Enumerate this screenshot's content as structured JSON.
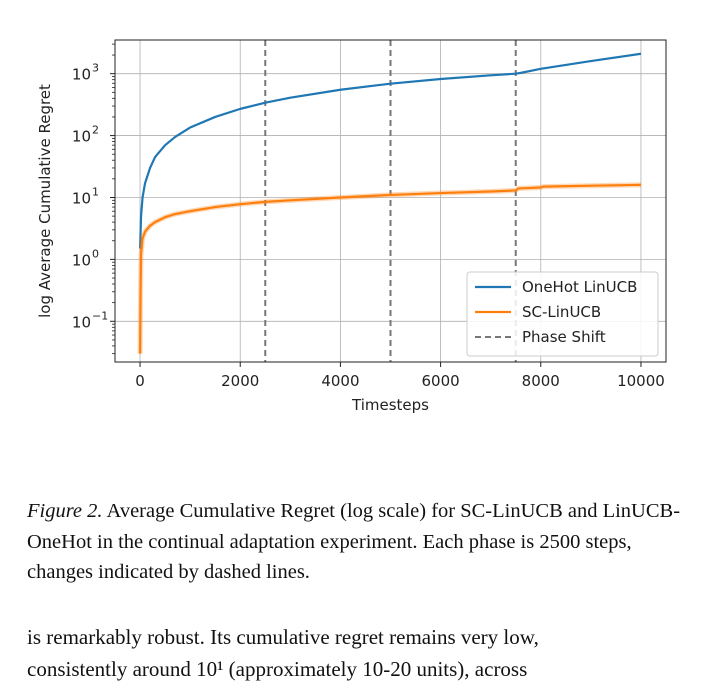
{
  "chart_data": {
    "type": "line",
    "xlabel": "Timesteps",
    "ylabel": "log Average Cumulative Regret",
    "y_scale": "log",
    "xlim": [
      -500,
      10500
    ],
    "ylim": [
      0.022,
      3500
    ],
    "x_ticks": [
      0,
      2000,
      4000,
      6000,
      8000,
      10000
    ],
    "x_tick_labels": [
      "0",
      "2000",
      "4000",
      "6000",
      "8000",
      "10000"
    ],
    "y_ticks": [
      0.1,
      1,
      10,
      100,
      1000
    ],
    "y_tick_labels": [
      {
        "base": "10",
        "exp": "−1"
      },
      {
        "base": "10",
        "exp": "0"
      },
      {
        "base": "10",
        "exp": "1"
      },
      {
        "base": "10",
        "exp": "2"
      },
      {
        "base": "10",
        "exp": "3"
      }
    ],
    "grid": true,
    "legend_position": "lower-right",
    "series": [
      {
        "name": "OneHot LinUCB",
        "color": "#1f77b4",
        "x": [
          1,
          20,
          50,
          100,
          200,
          300,
          500,
          700,
          1000,
          1500,
          2000,
          2500,
          3000,
          4000,
          5000,
          6000,
          7000,
          7500,
          7600,
          8000,
          9000,
          10000
        ],
        "y": [
          1.5,
          5,
          10,
          17,
          30,
          45,
          70,
          95,
          135,
          200,
          270,
          340,
          410,
          550,
          690,
          820,
          940,
          1000,
          1030,
          1200,
          1600,
          2100
        ]
      },
      {
        "name": "SC-LinUCB",
        "color": "#ff7f0e",
        "x": [
          1,
          10,
          20,
          50,
          100,
          200,
          300,
          500,
          700,
          1000,
          1500,
          2000,
          2500,
          3000,
          4000,
          5000,
          6000,
          7000,
          7500,
          7550,
          8000,
          8050,
          9000,
          10000
        ],
        "y": [
          0.03,
          0.3,
          1.2,
          2.2,
          2.8,
          3.5,
          4.0,
          4.8,
          5.4,
          6.0,
          7.0,
          7.8,
          8.5,
          9.0,
          10.0,
          11.0,
          11.8,
          12.5,
          13.0,
          14.0,
          14.5,
          15.0,
          15.5,
          16.0
        ]
      }
    ],
    "phase_shifts": [
      2500,
      5000,
      7500
    ],
    "phase_shift_label": "Phase Shift",
    "phase_shift_color": "#777777"
  },
  "caption": {
    "figure_label": "Figure 2.",
    "text": " Average Cumulative Regret (log scale) for SC-LinUCB and LinUCB-OneHot in the continual adaptation experiment. Each phase is 2500 steps, changes indicated by dashed lines."
  },
  "body": {
    "line1": "is remarkably robust. Its cumulative regret remains very low,",
    "line2": "consistently around 10¹ (approximately 10-20 units), across"
  }
}
